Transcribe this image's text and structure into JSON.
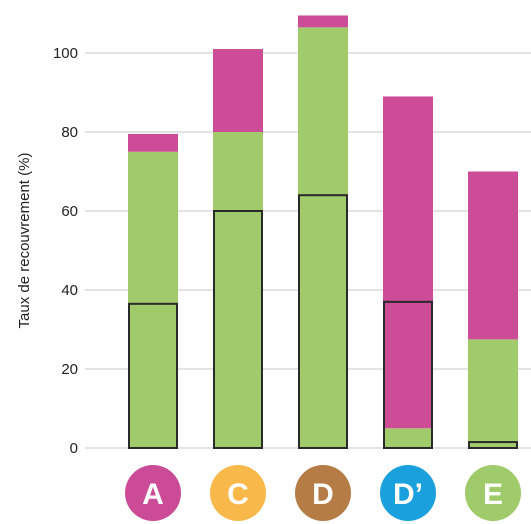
{
  "chart_data": {
    "type": "bar",
    "stacked": true,
    "categories": [
      "A",
      "C",
      "D",
      "D’",
      "E"
    ],
    "category_colors": [
      "#cc4b97",
      "#f9b84a",
      "#b67c46",
      "#1aa0dc",
      "#9fcb6a"
    ],
    "series": [
      {
        "color": "#a1ca6b",
        "values": [
          75,
          80,
          106.5,
          5,
          27.5
        ]
      },
      {
        "color": "#cd4c97",
        "values": [
          4.5,
          21,
          3,
          84,
          42.5
        ]
      }
    ],
    "outlined_values": [
      36.5,
      60,
      64,
      37,
      1.5
    ],
    "ylabel": "Taux de recouvrement (%)",
    "xlabel": "",
    "ylim": [
      0,
      110
    ],
    "yticks": [
      "0",
      "20",
      "40",
      "60",
      "80",
      "100"
    ],
    "grid": true
  }
}
